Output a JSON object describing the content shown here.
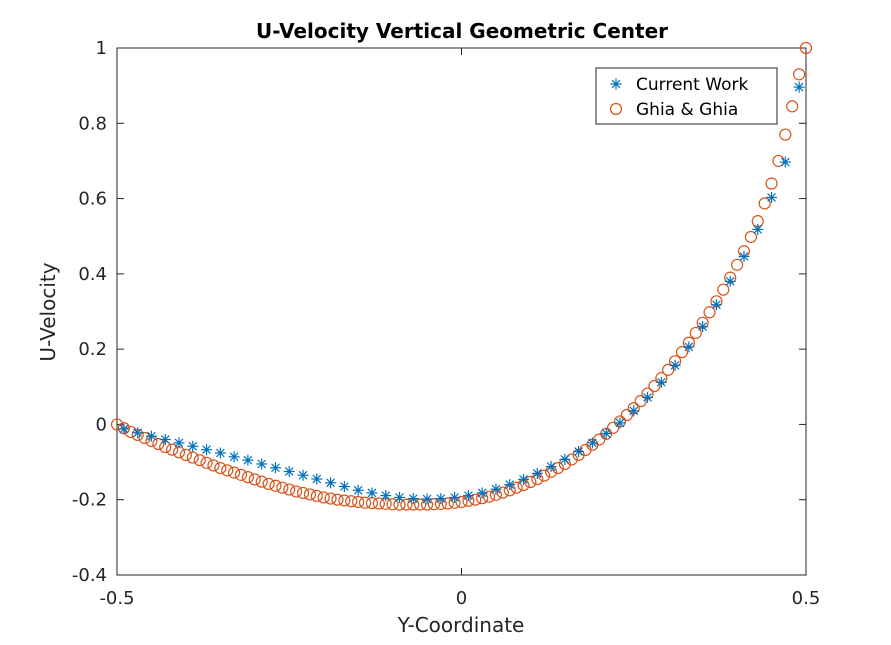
{
  "chart_data": {
    "type": "scatter",
    "title": "U-Velocity Vertical Geometric Center",
    "xlabel": "Y-Coordinate",
    "ylabel": "U-Velocity",
    "xlim": [
      -0.5,
      0.5
    ],
    "ylim": [
      -0.4,
      1
    ],
    "x_ticks": [
      -0.5,
      0,
      0.5
    ],
    "x_tick_labels": [
      "-0.5",
      "0",
      "0.5"
    ],
    "y_ticks": [
      -0.4,
      -0.2,
      0,
      0.2,
      0.4,
      0.6,
      0.8,
      1
    ],
    "y_tick_labels": [
      "-0.4",
      "-0.2",
      "0",
      "0.2",
      "0.4",
      "0.6",
      "0.8",
      "1"
    ],
    "grid": false,
    "legend_position": "top-right",
    "colors": {
      "current": "#0072BD",
      "ghia": "#D95319",
      "axis": "#262626"
    },
    "series": [
      {
        "name": "Current Work",
        "marker": "star",
        "x": [
          -0.49,
          -0.47,
          -0.45,
          -0.43,
          -0.41,
          -0.39,
          -0.37,
          -0.35,
          -0.33,
          -0.31,
          -0.29,
          -0.27,
          -0.25,
          -0.23,
          -0.21,
          -0.19,
          -0.17,
          -0.15,
          -0.13,
          -0.11,
          -0.09,
          -0.07,
          -0.05,
          -0.03,
          -0.01,
          0.01,
          0.03,
          0.05,
          0.07,
          0.09,
          0.11,
          0.13,
          0.15,
          0.17,
          0.19,
          0.21,
          0.23,
          0.25,
          0.27,
          0.29,
          0.31,
          0.33,
          0.35,
          0.37,
          0.39,
          0.41,
          0.43,
          0.45,
          0.47,
          0.49
        ],
        "y": [
          -0.012,
          -0.022,
          -0.031,
          -0.04,
          -0.049,
          -0.058,
          -0.067,
          -0.076,
          -0.086,
          -0.095,
          -0.105,
          -0.115,
          -0.125,
          -0.135,
          -0.145,
          -0.155,
          -0.165,
          -0.175,
          -0.182,
          -0.189,
          -0.194,
          -0.197,
          -0.198,
          -0.197,
          -0.194,
          -0.189,
          -0.182,
          -0.172,
          -0.16,
          -0.146,
          -0.13,
          -0.112,
          -0.093,
          -0.072,
          -0.049,
          -0.024,
          0.004,
          0.036,
          0.072,
          0.112,
          0.157,
          0.206,
          0.26,
          0.318,
          0.38,
          0.446,
          0.518,
          0.603,
          0.697,
          0.896
        ]
      },
      {
        "name": "Ghia & Ghia",
        "marker": "circle",
        "x": [
          -0.5,
          -0.49,
          -0.48,
          -0.47,
          -0.46,
          -0.45,
          -0.44,
          -0.43,
          -0.42,
          -0.41,
          -0.4,
          -0.39,
          -0.38,
          -0.37,
          -0.36,
          -0.35,
          -0.34,
          -0.33,
          -0.32,
          -0.31,
          -0.3,
          -0.29,
          -0.28,
          -0.27,
          -0.26,
          -0.25,
          -0.24,
          -0.23,
          -0.22,
          -0.21,
          -0.2,
          -0.19,
          -0.18,
          -0.17,
          -0.16,
          -0.15,
          -0.14,
          -0.13,
          -0.12,
          -0.11,
          -0.1,
          -0.09,
          -0.08,
          -0.07,
          -0.06,
          -0.05,
          -0.04,
          -0.03,
          -0.02,
          -0.01,
          0.0,
          0.01,
          0.02,
          0.03,
          0.04,
          0.05,
          0.06,
          0.07,
          0.08,
          0.09,
          0.1,
          0.11,
          0.12,
          0.13,
          0.14,
          0.15,
          0.16,
          0.17,
          0.18,
          0.19,
          0.2,
          0.21,
          0.22,
          0.23,
          0.24,
          0.25,
          0.26,
          0.27,
          0.28,
          0.29,
          0.3,
          0.31,
          0.32,
          0.33,
          0.34,
          0.35,
          0.36,
          0.37,
          0.38,
          0.39,
          0.4,
          0.41,
          0.42,
          0.43,
          0.44,
          0.45,
          0.46,
          0.47,
          0.48,
          0.49,
          0.5
        ],
        "y": [
          0.0,
          -0.01,
          -0.02,
          -0.028,
          -0.036,
          -0.044,
          -0.052,
          -0.06,
          -0.067,
          -0.074,
          -0.081,
          -0.088,
          -0.095,
          -0.102,
          -0.109,
          -0.116,
          -0.122,
          -0.128,
          -0.134,
          -0.14,
          -0.146,
          -0.152,
          -0.158,
          -0.163,
          -0.168,
          -0.173,
          -0.178,
          -0.182,
          -0.186,
          -0.19,
          -0.194,
          -0.197,
          -0.2,
          -0.202,
          -0.204,
          -0.206,
          -0.208,
          -0.209,
          -0.21,
          -0.211,
          -0.212,
          -0.213,
          -0.213,
          -0.213,
          -0.213,
          -0.213,
          -0.212,
          -0.211,
          -0.21,
          -0.208,
          -0.206,
          -0.203,
          -0.2,
          -0.196,
          -0.192,
          -0.187,
          -0.181,
          -0.175,
          -0.168,
          -0.161,
          -0.153,
          -0.145,
          -0.136,
          -0.126,
          -0.116,
          -0.105,
          -0.093,
          -0.081,
          -0.068,
          -0.054,
          -0.04,
          -0.025,
          -0.009,
          0.008,
          0.025,
          0.043,
          0.062,
          0.082,
          0.102,
          0.123,
          0.145,
          0.168,
          0.192,
          0.217,
          0.243,
          0.27,
          0.298,
          0.327,
          0.358,
          0.39,
          0.424,
          0.46,
          0.498,
          0.54,
          0.587,
          0.64,
          0.7,
          0.77,
          0.845,
          0.93,
          1.0
        ]
      }
    ]
  }
}
